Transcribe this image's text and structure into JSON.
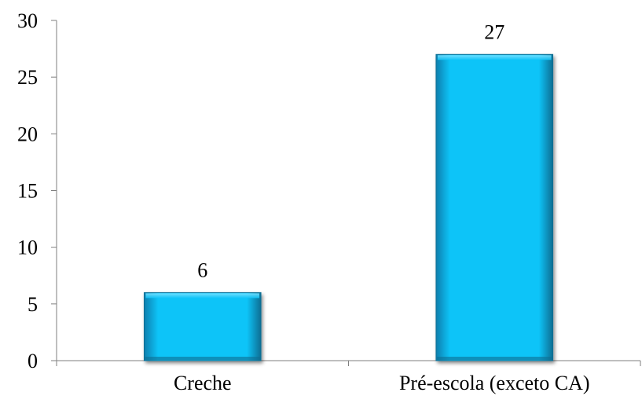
{
  "chart_data": {
    "type": "bar",
    "title": "",
    "xlabel": "",
    "ylabel": "",
    "categories": [
      "Creche",
      "Pré-escola (exceto CA)"
    ],
    "values": [
      6,
      27
    ],
    "data_labels": [
      "6",
      "27"
    ],
    "ylim": [
      0,
      30
    ],
    "yticks": [
      0,
      5,
      10,
      15,
      20,
      25,
      30
    ],
    "ytick_labels": [
      "0",
      "5",
      "10",
      "15",
      "20",
      "25",
      "30"
    ],
    "grid": false,
    "legend": "none",
    "bar_color": "#0BBEF6",
    "bar_edge_color": "#0A6E93"
  }
}
